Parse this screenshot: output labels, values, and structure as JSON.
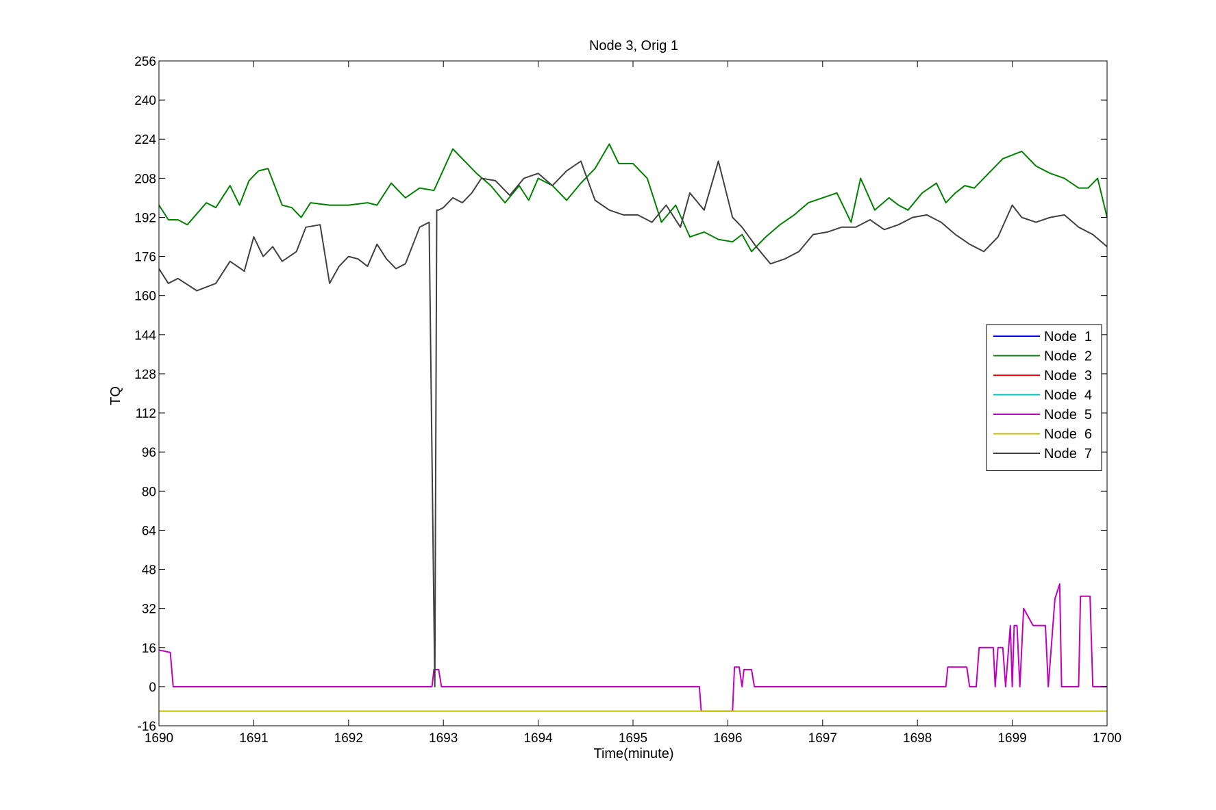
{
  "chart_data": {
    "type": "line",
    "title": "Node 3, Orig 1",
    "xlabel": "Time(minute)",
    "ylabel": "TQ",
    "xlim": [
      1690,
      1700
    ],
    "ylim": [
      -16,
      256
    ],
    "xticks": [
      1690,
      1691,
      1692,
      1693,
      1694,
      1695,
      1696,
      1697,
      1698,
      1699,
      1700
    ],
    "yticks": [
      -16,
      0,
      16,
      32,
      48,
      64,
      80,
      96,
      112,
      128,
      144,
      160,
      176,
      192,
      208,
      224,
      240,
      256
    ],
    "grid": false,
    "legend_position": "right",
    "series": [
      {
        "name": "Node  1",
        "color": "#0000ff",
        "x": [],
        "y": []
      },
      {
        "name": "Node  2",
        "color": "#008000",
        "x": [
          1690.0,
          1690.1,
          1690.2,
          1690.3,
          1690.5,
          1690.6,
          1690.75,
          1690.85,
          1690.95,
          1691.05,
          1691.15,
          1691.3,
          1691.4,
          1691.5,
          1691.6,
          1691.8,
          1692.0,
          1692.2,
          1692.3,
          1692.45,
          1692.6,
          1692.75,
          1692.9,
          1693.1,
          1693.25,
          1693.35,
          1693.5,
          1693.65,
          1693.8,
          1693.9,
          1694.0,
          1694.15,
          1694.3,
          1694.45,
          1694.6,
          1694.75,
          1694.85,
          1695.0,
          1695.15,
          1695.3,
          1695.45,
          1695.6,
          1695.75,
          1695.9,
          1696.05,
          1696.15,
          1696.25,
          1696.4,
          1696.55,
          1696.7,
          1696.85,
          1697.0,
          1697.15,
          1697.3,
          1697.4,
          1697.55,
          1697.7,
          1697.8,
          1697.9,
          1698.05,
          1698.2,
          1698.3,
          1698.4,
          1698.5,
          1698.6,
          1698.75,
          1698.9,
          1699.1,
          1699.25,
          1699.4,
          1699.55,
          1699.7,
          1699.8,
          1699.9,
          1700.0
        ],
        "y": [
          197,
          191,
          191,
          189,
          198,
          196,
          205,
          197,
          207,
          211,
          212,
          197,
          196,
          192,
          198,
          197,
          197,
          198,
          197,
          206,
          200,
          204,
          203,
          220,
          214,
          210,
          205,
          198,
          205,
          199,
          208,
          205,
          199,
          206,
          212,
          222,
          214,
          214,
          208,
          190,
          197,
          184,
          186,
          183,
          182,
          185,
          178,
          184,
          189,
          193,
          198,
          200,
          202,
          190,
          208,
          195,
          200,
          197,
          195,
          202,
          206,
          198,
          202,
          205,
          204,
          210,
          216,
          219,
          213,
          210,
          208,
          204,
          204,
          208,
          192
        ]
      },
      {
        "name": "Node  3",
        "color": "#ff0000",
        "x": [],
        "y": []
      },
      {
        "name": "Node  4",
        "color": "#00bfbf",
        "x": [],
        "y": []
      },
      {
        "name": "Node  5",
        "color": "#bf00bf",
        "x": [
          1690.0,
          1690.12,
          1690.15,
          1692.88,
          1692.9,
          1692.95,
          1692.98,
          1695.7,
          1695.72,
          1696.05,
          1696.07,
          1696.12,
          1696.15,
          1696.17,
          1696.25,
          1696.28,
          1698.3,
          1698.32,
          1698.52,
          1698.55,
          1698.62,
          1698.65,
          1698.8,
          1698.82,
          1698.85,
          1698.9,
          1698.93,
          1698.98,
          1699.0,
          1699.02,
          1699.05,
          1699.08,
          1699.12,
          1699.22,
          1699.35,
          1699.38,
          1699.45,
          1699.5,
          1699.52,
          1699.7,
          1699.72,
          1699.82,
          1699.85,
          1700.0
        ],
        "y": [
          15,
          14,
          0,
          0,
          7,
          7,
          0,
          0,
          -10,
          -10,
          8,
          8,
          0,
          7,
          7,
          0,
          0,
          8,
          8,
          0,
          0,
          16,
          16,
          0,
          16,
          16,
          0,
          25,
          0,
          25,
          25,
          0,
          32,
          25,
          25,
          0,
          36,
          42,
          0,
          0,
          37,
          37,
          0,
          0
        ]
      },
      {
        "name": "Node  6",
        "color": "#bfbf00",
        "x": [
          1690,
          1700
        ],
        "y": [
          -10,
          -10
        ]
      },
      {
        "name": "Node  7",
        "color": "#404040",
        "x": [
          1690.0,
          1690.1,
          1690.2,
          1690.4,
          1690.6,
          1690.75,
          1690.9,
          1691.0,
          1691.1,
          1691.2,
          1691.3,
          1691.45,
          1691.55,
          1691.7,
          1691.8,
          1691.9,
          1692.0,
          1692.1,
          1692.2,
          1692.3,
          1692.4,
          1692.5,
          1692.6,
          1692.75,
          1692.85,
          1692.91,
          1692.93,
          1692.95,
          1693.0,
          1693.1,
          1693.2,
          1693.3,
          1693.4,
          1693.55,
          1693.7,
          1693.85,
          1694.0,
          1694.15,
          1694.3,
          1694.45,
          1694.6,
          1694.75,
          1694.9,
          1695.05,
          1695.2,
          1695.35,
          1695.5,
          1695.6,
          1695.75,
          1695.9,
          1696.05,
          1696.15,
          1696.3,
          1696.45,
          1696.6,
          1696.75,
          1696.9,
          1697.05,
          1697.2,
          1697.35,
          1697.5,
          1697.65,
          1697.8,
          1697.95,
          1698.1,
          1698.25,
          1698.4,
          1698.55,
          1698.7,
          1698.85,
          1699.0,
          1699.1,
          1699.25,
          1699.4,
          1699.55,
          1699.7,
          1699.85,
          1700.0
        ],
        "y": [
          171,
          165,
          167,
          162,
          165,
          174,
          170,
          184,
          176,
          180,
          174,
          178,
          188,
          189,
          165,
          172,
          176,
          175,
          172,
          181,
          175,
          171,
          173,
          188,
          190,
          0,
          195,
          195,
          196,
          200,
          198,
          202,
          208,
          207,
          201,
          208,
          210,
          205,
          211,
          215,
          199,
          195,
          193,
          193,
          190,
          197,
          188,
          202,
          195,
          215,
          192,
          188,
          180,
          173,
          175,
          178,
          185,
          186,
          188,
          188,
          191,
          187,
          189,
          192,
          193,
          190,
          185,
          181,
          178,
          184,
          197,
          192,
          190,
          192,
          193,
          188,
          185,
          180
        ]
      }
    ]
  }
}
